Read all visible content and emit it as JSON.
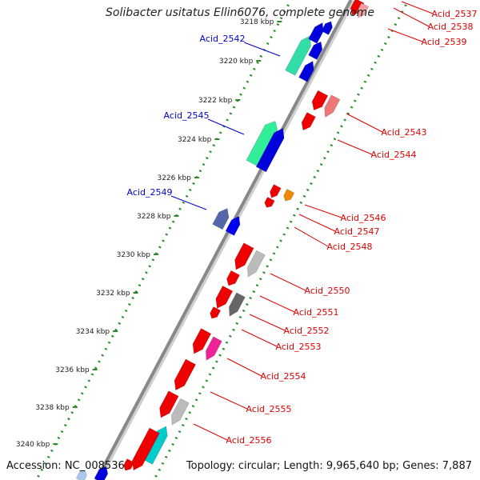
{
  "title": "Solibacter usitatus Ellin6076, complete genome",
  "accession_label": "Accession: NC_008536",
  "topology_label": "Topology: circular; Length: 9,965,640 bp; Genes: 7,887",
  "colors": {
    "forward_label": "#0000cc",
    "reverse_label": "#dd0000",
    "backbone": "#888888",
    "dots": "#2a8a2a"
  },
  "ticks": [
    "3218 kbp",
    "3220 kbp",
    "3222 kbp",
    "3224 kbp",
    "3226 kbp",
    "3228 kbp",
    "3230 kbp",
    "3232 kbp",
    "3234 kbp",
    "3236 kbp",
    "3238 kbp",
    "3240 kbp"
  ],
  "genes_forward": [
    "Acid_2542",
    "Acid_2545",
    "Acid_2549"
  ],
  "genes_reverse": [
    "Acid_2537",
    "Acid_2538",
    "Acid_2539",
    "Acid_2543",
    "Acid_2544",
    "Acid_2546",
    "Acid_2547",
    "Acid_2548",
    "Acid_2550",
    "Acid_2551",
    "Acid_2552",
    "Acid_2553",
    "Acid_2554",
    "Acid_2555",
    "Acid_2556"
  ]
}
